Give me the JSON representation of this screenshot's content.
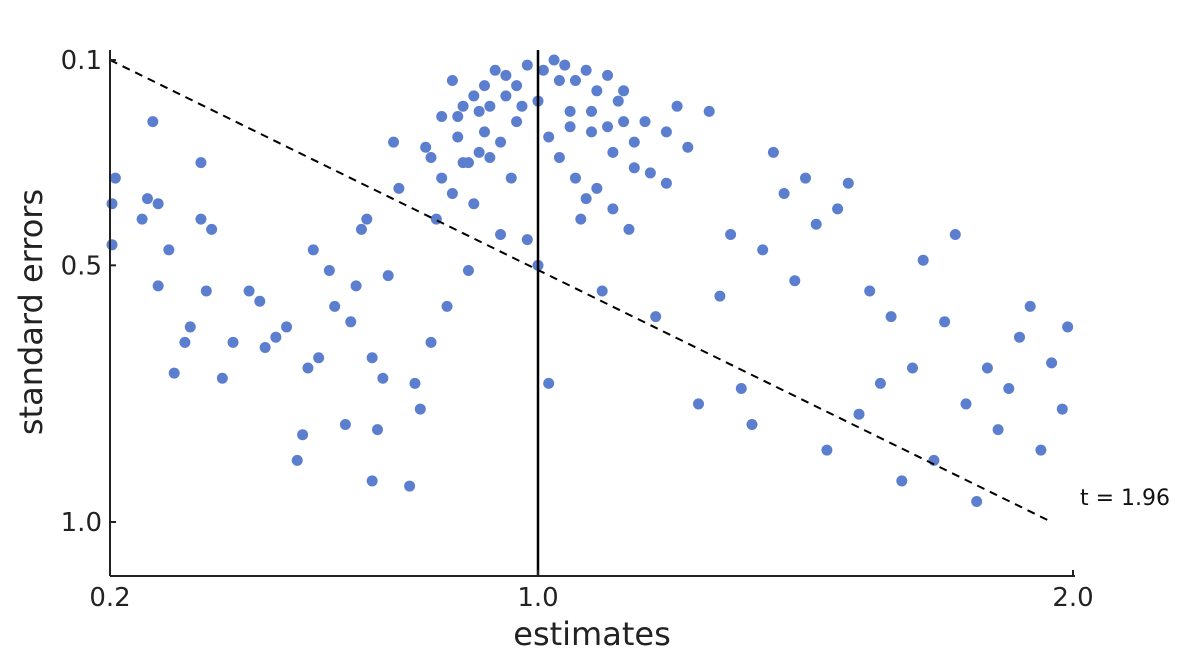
{
  "chart_data": {
    "type": "scatter",
    "xlabel": "estimates",
    "ylabel": "standard errors",
    "xlim": [
      0.2,
      2.0
    ],
    "ylim": [
      1.1,
      0.1
    ],
    "y_inverted": true,
    "xticks": [
      {
        "value": 0.2,
        "label": "0.2"
      },
      {
        "value": 1.0,
        "label": "1.0"
      },
      {
        "value": 2.0,
        "label": "2.0"
      }
    ],
    "yticks": [
      {
        "value": 0.1,
        "label": "0.1"
      },
      {
        "value": 0.5,
        "label": "0.5"
      },
      {
        "value": 1.0,
        "label": "1.0"
      }
    ],
    "reference_line": {
      "x": 1.0
    },
    "significance_line": {
      "from": [
        0.2,
        0.1
      ],
      "to": [
        1.96,
        1.0
      ],
      "style": "dashed"
    },
    "annotation": "t = 1.96",
    "marker_color": "#5b7fce",
    "line_color": "#000000",
    "grid": false,
    "legend": "none",
    "points": [
      [
        0.2,
        0.46
      ],
      [
        0.2,
        0.38
      ],
      [
        0.21,
        0.33
      ],
      [
        0.26,
        0.41
      ],
      [
        0.27,
        0.37
      ],
      [
        0.28,
        0.22
      ],
      [
        0.29,
        0.38
      ],
      [
        0.29,
        0.54
      ],
      [
        0.31,
        0.47
      ],
      [
        0.32,
        0.71
      ],
      [
        0.34,
        0.65
      ],
      [
        0.35,
        0.62
      ],
      [
        0.37,
        0.3
      ],
      [
        0.37,
        0.41
      ],
      [
        0.38,
        0.55
      ],
      [
        0.39,
        0.43
      ],
      [
        0.41,
        0.72
      ],
      [
        0.43,
        0.65
      ],
      [
        0.46,
        0.55
      ],
      [
        0.48,
        0.57
      ],
      [
        0.49,
        0.66
      ],
      [
        0.51,
        0.64
      ],
      [
        0.53,
        0.62
      ],
      [
        0.55,
        0.88
      ],
      [
        0.56,
        0.83
      ],
      [
        0.57,
        0.7
      ],
      [
        0.58,
        0.47
      ],
      [
        0.59,
        0.68
      ],
      [
        0.61,
        0.51
      ],
      [
        0.62,
        0.58
      ],
      [
        0.64,
        0.81
      ],
      [
        0.65,
        0.61
      ],
      [
        0.66,
        0.54
      ],
      [
        0.67,
        0.43
      ],
      [
        0.68,
        0.41
      ],
      [
        0.69,
        0.92
      ],
      [
        0.69,
        0.68
      ],
      [
        0.7,
        0.82
      ],
      [
        0.71,
        0.72
      ],
      [
        0.72,
        0.52
      ],
      [
        0.73,
        0.26
      ],
      [
        0.74,
        0.35
      ],
      [
        0.76,
        0.93
      ],
      [
        0.77,
        0.73
      ],
      [
        0.78,
        0.78
      ],
      [
        0.79,
        0.27
      ],
      [
        0.8,
        0.65
      ],
      [
        0.81,
        0.41
      ],
      [
        0.83,
        0.58
      ],
      [
        0.84,
        0.36
      ],
      [
        0.85,
        0.21
      ],
      [
        0.86,
        0.3
      ],
      [
        0.87,
        0.51
      ],
      [
        0.88,
        0.38
      ],
      [
        0.89,
        0.28
      ],
      [
        0.9,
        0.24
      ],
      [
        0.91,
        0.19
      ],
      [
        0.93,
        0.44
      ],
      [
        0.94,
        0.17
      ],
      [
        0.95,
        0.33
      ],
      [
        0.97,
        0.19
      ],
      [
        0.98,
        0.45
      ],
      [
        1.0,
        0.5
      ],
      [
        1.02,
        0.73
      ],
      [
        1.04,
        0.14
      ],
      [
        1.06,
        0.23
      ],
      [
        1.08,
        0.41
      ],
      [
        1.1,
        0.2
      ],
      [
        1.12,
        0.55
      ],
      [
        1.14,
        0.28
      ],
      [
        1.16,
        0.16
      ],
      [
        1.18,
        0.26
      ],
      [
        1.2,
        0.22
      ],
      [
        1.22,
        0.6
      ],
      [
        1.24,
        0.34
      ],
      [
        1.26,
        0.19
      ],
      [
        1.28,
        0.27
      ],
      [
        1.3,
        0.77
      ],
      [
        1.32,
        0.2
      ],
      [
        1.34,
        0.56
      ],
      [
        1.36,
        0.44
      ],
      [
        1.38,
        0.74
      ],
      [
        1.4,
        0.81
      ],
      [
        1.42,
        0.47
      ],
      [
        1.44,
        0.28
      ],
      [
        1.46,
        0.36
      ],
      [
        1.48,
        0.53
      ],
      [
        1.5,
        0.33
      ],
      [
        1.52,
        0.42
      ],
      [
        1.54,
        0.86
      ],
      [
        1.56,
        0.39
      ],
      [
        1.58,
        0.34
      ],
      [
        1.6,
        0.79
      ],
      [
        1.62,
        0.55
      ],
      [
        1.64,
        0.73
      ],
      [
        1.66,
        0.6
      ],
      [
        1.68,
        0.92
      ],
      [
        1.7,
        0.7
      ],
      [
        1.72,
        0.49
      ],
      [
        1.74,
        0.88
      ],
      [
        1.76,
        0.61
      ],
      [
        1.78,
        0.44
      ],
      [
        1.8,
        0.77
      ],
      [
        1.82,
        0.96
      ],
      [
        1.84,
        0.7
      ],
      [
        1.86,
        0.82
      ],
      [
        1.88,
        0.74
      ],
      [
        1.9,
        0.64
      ],
      [
        1.92,
        0.58
      ],
      [
        1.94,
        0.86
      ],
      [
        1.96,
        0.69
      ],
      [
        1.98,
        0.78
      ],
      [
        1.99,
        0.62
      ],
      [
        0.92,
        0.12
      ],
      [
        0.94,
        0.13
      ],
      [
        0.96,
        0.15
      ],
      [
        0.98,
        0.11
      ],
      [
        1.01,
        0.12
      ],
      [
        1.03,
        0.1
      ],
      [
        1.05,
        0.11
      ],
      [
        1.07,
        0.14
      ],
      [
        1.09,
        0.12
      ],
      [
        1.11,
        0.16
      ],
      [
        1.13,
        0.13
      ],
      [
        1.15,
        0.18
      ],
      [
        0.82,
        0.21
      ],
      [
        0.84,
        0.14
      ],
      [
        0.86,
        0.19
      ],
      [
        0.88,
        0.17
      ],
      [
        0.9,
        0.15
      ],
      [
        0.96,
        0.22
      ],
      [
        1.0,
        0.18
      ],
      [
        1.02,
        0.25
      ],
      [
        1.06,
        0.2
      ],
      [
        1.1,
        0.24
      ],
      [
        1.13,
        0.23
      ],
      [
        1.16,
        0.22
      ],
      [
        1.18,
        0.31
      ],
      [
        1.21,
        0.32
      ],
      [
        1.24,
        0.24
      ],
      [
        0.8,
        0.29
      ],
      [
        0.82,
        0.33
      ],
      [
        0.85,
        0.25
      ],
      [
        0.87,
        0.3
      ],
      [
        0.89,
        0.2
      ],
      [
        0.91,
        0.29
      ],
      [
        0.93,
        0.26
      ],
      [
        1.04,
        0.29
      ],
      [
        1.07,
        0.33
      ],
      [
        1.09,
        0.37
      ],
      [
        1.11,
        0.35
      ],
      [
        1.14,
        0.39
      ],
      [
        1.17,
        0.43
      ]
    ]
  }
}
